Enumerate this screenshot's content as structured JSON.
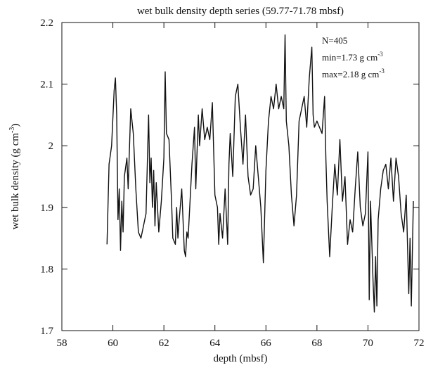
{
  "chart_data": {
    "type": "line",
    "title": "wet bulk density depth series (59.77-71.78 mbsf)",
    "x_label": "depth (mbsf)",
    "y_label": {
      "text": "wet bulk density (g cm",
      "sup": "-3",
      "tail": ")"
    },
    "annotations": [
      {
        "text": "N=405"
      },
      {
        "text": "min=1.73 g cm",
        "sup": "-3"
      },
      {
        "text": "max=2.18 g cm",
        "sup": "-3"
      }
    ],
    "color": "#111111",
    "xlim": [
      58,
      72
    ],
    "ylim": [
      1.7,
      2.2
    ],
    "xticks": [
      58,
      60,
      62,
      64,
      66,
      68,
      70,
      72
    ],
    "yticks": [
      1.7,
      1.8,
      1.9,
      2,
      2.1,
      2.2
    ],
    "grid": false,
    "x": [
      59.77,
      59.85,
      59.95,
      60.05,
      60.1,
      60.15,
      60.2,
      60.25,
      60.3,
      60.35,
      60.4,
      60.45,
      60.55,
      60.6,
      60.7,
      60.8,
      60.9,
      61.0,
      61.1,
      61.3,
      61.4,
      61.45,
      61.5,
      61.55,
      61.6,
      61.65,
      61.7,
      61.8,
      61.9,
      62.0,
      62.05,
      62.1,
      62.2,
      62.3,
      62.35,
      62.45,
      62.5,
      62.55,
      62.6,
      62.7,
      62.8,
      62.85,
      62.9,
      62.95,
      63.1,
      63.2,
      63.25,
      63.35,
      63.4,
      63.5,
      63.6,
      63.7,
      63.8,
      63.9,
      64.0,
      64.1,
      64.15,
      64.2,
      64.3,
      64.4,
      64.5,
      64.55,
      64.6,
      64.7,
      64.8,
      64.9,
      65.0,
      65.1,
      65.2,
      65.3,
      65.4,
      65.5,
      65.6,
      65.7,
      65.8,
      65.9,
      66.0,
      66.1,
      66.2,
      66.3,
      66.4,
      66.5,
      66.6,
      66.7,
      66.75,
      66.8,
      66.9,
      67.0,
      67.1,
      67.2,
      67.3,
      67.4,
      67.5,
      67.6,
      67.7,
      67.8,
      67.85,
      67.9,
      68.0,
      68.1,
      68.2,
      68.3,
      68.35,
      68.4,
      68.5,
      68.6,
      68.7,
      68.8,
      68.9,
      69.0,
      69.1,
      69.2,
      69.3,
      69.4,
      69.5,
      69.6,
      69.7,
      69.8,
      69.9,
      70.0,
      70.05,
      70.1,
      70.2,
      70.25,
      70.3,
      70.35,
      70.4,
      70.5,
      70.6,
      70.7,
      70.8,
      70.9,
      71.0,
      71.1,
      71.2,
      71.3,
      71.4,
      71.5,
      71.6,
      71.65,
      71.7,
      71.78
    ],
    "values": [
      1.84,
      1.97,
      2.0,
      2.09,
      2.11,
      2.05,
      1.88,
      1.93,
      1.83,
      1.91,
      1.86,
      1.95,
      1.98,
      1.93,
      2.06,
      2.02,
      1.93,
      1.86,
      1.85,
      1.89,
      2.05,
      1.94,
      1.98,
      1.9,
      1.96,
      1.87,
      1.94,
      1.86,
      1.91,
      1.98,
      2.12,
      2.02,
      2.01,
      1.91,
      1.85,
      1.84,
      1.9,
      1.85,
      1.88,
      1.93,
      1.83,
      1.82,
      1.86,
      1.85,
      1.97,
      2.03,
      1.93,
      2.05,
      2.0,
      2.06,
      2.01,
      2.03,
      2.01,
      2.07,
      1.92,
      1.9,
      1.84,
      1.89,
      1.85,
      1.93,
      1.84,
      1.97,
      2.02,
      1.95,
      2.08,
      2.1,
      2.03,
      1.97,
      2.05,
      1.95,
      1.92,
      1.93,
      2.0,
      1.95,
      1.9,
      1.81,
      1.96,
      2.04,
      2.08,
      2.06,
      2.1,
      2.06,
      2.08,
      2.06,
      2.18,
      2.04,
      2.0,
      1.92,
      1.87,
      1.92,
      2.04,
      2.06,
      2.08,
      2.03,
      2.11,
      2.16,
      2.05,
      2.03,
      2.04,
      2.03,
      2.02,
      2.08,
      1.98,
      1.91,
      1.82,
      1.9,
      1.97,
      1.92,
      2.01,
      1.91,
      1.95,
      1.84,
      1.88,
      1.86,
      1.93,
      1.99,
      1.9,
      1.87,
      1.89,
      1.99,
      1.75,
      1.91,
      1.78,
      1.73,
      1.82,
      1.74,
      1.88,
      1.93,
      1.96,
      1.97,
      1.93,
      1.98,
      1.91,
      1.98,
      1.95,
      1.89,
      1.86,
      1.92,
      1.76,
      1.85,
      1.74,
      1.91
    ]
  }
}
